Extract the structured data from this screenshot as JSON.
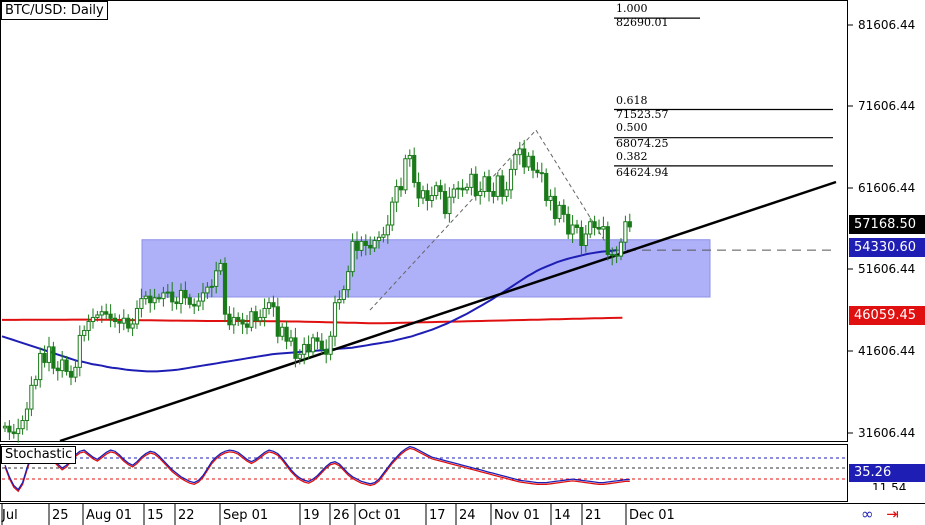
{
  "title": "BTC/USD: Daily",
  "indicator_label": "Stochastic",
  "price_axis": {
    "labels": [
      "81606.44",
      "71606.44",
      "61606.44",
      "51606.44",
      "41606.44",
      "31606.44"
    ],
    "tags": [
      {
        "name": "last-price",
        "text": "57168.50",
        "bg": "#000000",
        "fg": "#ffffff"
      },
      {
        "name": "ma50",
        "text": "54330.60",
        "bg": "#1e1eb4",
        "fg": "#ffffff"
      },
      {
        "name": "ma200",
        "text": "46059.45",
        "bg": "#e01010",
        "fg": "#ffffff"
      }
    ]
  },
  "stoch_axis": {
    "tag": {
      "text": "35.26",
      "bg": "#1e1eb4",
      "fg": "#ffffff"
    },
    "partial_label": "11.54"
  },
  "x_labels": [
    "Jul",
    "25",
    "Aug 01",
    "15",
    "22",
    "Sep 01",
    "19",
    "26",
    "Oct 01",
    "17",
    "24",
    "Nov 01",
    "14",
    "21",
    "Dec 01"
  ],
  "fibonacci": [
    {
      "ratio": "1.000",
      "price": "82690.01"
    },
    {
      "ratio": "0.618",
      "price": "71523.57"
    },
    {
      "ratio": "0.500",
      "price": "68074.25"
    },
    {
      "ratio": "0.382",
      "price": "64624.94"
    }
  ],
  "colors": {
    "ma50": "#1e1eb4",
    "ma200": "#e01010",
    "candle": "#1a7a1a",
    "zone": "#aeb0f8",
    "trendline": "#000000"
  },
  "icons": [
    "link-icon",
    "arrow-icon"
  ],
  "chart_data": {
    "type": "candlestick",
    "title": "BTC/USD: Daily",
    "ylim": [
      29000,
      85500
    ],
    "support_zone": [
      48600,
      55600
    ],
    "dashed_level": 54330.6,
    "ma50_last": 54330.6,
    "ma200_last": 46059.45,
    "last_price": 57168.5,
    "closes": [
      32800,
      32100,
      31900,
      32500,
      33500,
      34900,
      37800,
      38500,
      41700,
      40600,
      42500,
      39900,
      39600,
      40900,
      39500,
      38800,
      40000,
      43900,
      44500,
      45600,
      46100,
      46400,
      46800,
      46500,
      46000,
      45600,
      45400,
      46000,
      44800,
      45300,
      47200,
      48400,
      48700,
      47900,
      48500,
      48400,
      49100,
      49200,
      48000,
      47800,
      49400,
      48500,
      47700,
      47500,
      48100,
      49100,
      49800,
      49900,
      51800,
      52700,
      46500,
      45200,
      46100,
      45800,
      45300,
      44900,
      46800,
      45700,
      46100,
      47200,
      47900,
      47400,
      43800,
      44900,
      43200,
      43600,
      41100,
      41600,
      42800,
      41900,
      43600,
      43200,
      42200,
      41600,
      43800,
      47900,
      48300,
      49500,
      51700,
      55400,
      54300,
      55400,
      54900,
      54600,
      55500,
      55900,
      56200,
      57400,
      60200,
      62100,
      61700,
      65500,
      65900,
      62600,
      60700,
      61600,
      60400,
      61000,
      62200,
      61500,
      58800,
      60800,
      61800,
      61900,
      61700,
      62000,
      63600,
      61000,
      61500,
      63300,
      61500,
      60900,
      63400,
      60900,
      61700,
      64200,
      66000,
      66700,
      64500,
      65800,
      64100,
      63800,
      63700,
      60400,
      60900,
      58200,
      59800,
      58700,
      56300,
      57400,
      57100,
      54900,
      56300,
      57800,
      57100,
      56900,
      57200,
      53800,
      53700,
      53600,
      55300,
      57800,
      57168.5
    ],
    "ma50": [
      43800,
      43600,
      43400,
      43200,
      43000,
      42800,
      42600,
      42400,
      42200,
      42000,
      41800,
      41600,
      41400,
      41200,
      41000,
      40800,
      40700,
      40550,
      40400,
      40300,
      40200,
      40050,
      39950,
      39900,
      39800,
      39700,
      39650,
      39600,
      39550,
      39500,
      39500,
      39500,
      39550,
      39600,
      39650,
      39700,
      39800,
      39900,
      40000,
      40100,
      40200,
      40300,
      40400,
      40500,
      40600,
      40700,
      40800,
      40900,
      41000,
      41100,
      41200,
      41300,
      41400,
      41500,
      41600,
      41650,
      41700,
      41750,
      41800,
      41850,
      41900,
      41950,
      42000,
      42050,
      42100,
      42150,
      42200,
      42250,
      42300,
      42350,
      42400,
      42500,
      42600,
      42700,
      42800,
      42900,
      43000,
      43100,
      43200,
      43350,
      43500,
      43650,
      43800,
      44000,
      44200,
      44400,
      44600,
      44850,
      45100,
      45350,
      45650,
      45950,
      46250,
      46550,
      46900,
      47250,
      47600,
      47950,
      48300,
      48700,
      49100,
      49500,
      49900,
      50300,
      50700,
      51100,
      51450,
      51800,
      52100,
      52350,
      52600,
      52850,
      53050,
      53250,
      53400,
      53550,
      53700,
      53850,
      53950,
      54050,
      54150,
      54200,
      54250,
      54330.6
    ],
    "ma200": [
      45800,
      45800,
      45800,
      45810,
      45820,
      45820,
      45820,
      45830,
      45830,
      45830,
      45840,
      45840,
      45840,
      45830,
      45820,
      45810,
      45800,
      45790,
      45780,
      45770,
      45760,
      45750,
      45740,
      45730,
      45720,
      45710,
      45700,
      45690,
      45680,
      45670,
      45660,
      45660,
      45660,
      45660,
      45660,
      45660,
      45650,
      45650,
      45640,
      45630,
      45620,
      45610,
      45600,
      45580,
      45560,
      45540,
      45520,
      45500,
      45480,
      45460,
      45440,
      45420,
      45400,
      45400,
      45400,
      45410,
      45430,
      45450,
      45470,
      45490,
      45510,
      45530,
      45550,
      45570,
      45590,
      45610,
      45630,
      45650,
      45670,
      45690,
      45710,
      45730,
      45750,
      45770,
      45790,
      45810,
      45830,
      45850,
      45870,
      45890,
      45910,
      45930,
      45950,
      45970,
      45990,
      46010,
      46030,
      46045,
      46059.45
    ]
  }
}
